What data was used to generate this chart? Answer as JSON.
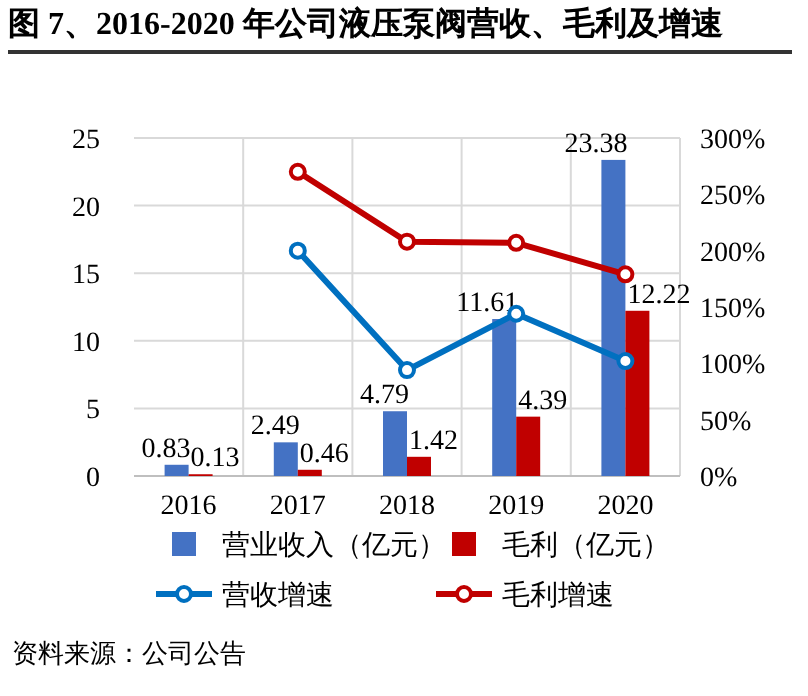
{
  "chart_data": {
    "type": "bar",
    "title": "图 7、2016-2020 年公司液压泵阀营收、毛利及增速",
    "categories": [
      "2016",
      "2017",
      "2018",
      "2019",
      "2020"
    ],
    "series": [
      {
        "name": "营业收入（亿元）",
        "color": "#4472c4",
        "values": [
          0.83,
          2.49,
          4.79,
          11.61,
          23.38
        ],
        "value_labels": [
          "0.83",
          "2.49",
          "4.79",
          "11.61",
          "23.38"
        ]
      },
      {
        "name": "毛利（亿元）",
        "color": "#c00000",
        "values": [
          0.13,
          0.46,
          1.42,
          4.39,
          12.22
        ],
        "value_labels": [
          "0.13",
          "0.46",
          "1.42",
          "4.39",
          "12.22"
        ]
      },
      {
        "name": "营收增速",
        "type": "line",
        "axis": "y2",
        "color": "#0070c0",
        "values": [
          null,
          200,
          94,
          144,
          102
        ]
      },
      {
        "name": "毛利增速",
        "type": "line",
        "axis": "y2",
        "color": "#c00000",
        "values": [
          null,
          270,
          208,
          207,
          179
        ]
      }
    ],
    "ylim": [
      0,
      25
    ],
    "yticks": [
      0,
      5,
      10,
      15,
      20,
      25
    ],
    "y2lim": [
      0,
      300
    ],
    "y2ticks": [
      {
        "value": 0,
        "label": "0%"
      },
      {
        "value": 50,
        "label": "50%"
      },
      {
        "value": 100,
        "label": "100%"
      },
      {
        "value": 150,
        "label": "150%"
      },
      {
        "value": 200,
        "label": "200%"
      },
      {
        "value": 250,
        "label": "250%"
      },
      {
        "value": 300,
        "label": "300%"
      }
    ],
    "grid": true,
    "legend": "bottom",
    "marker": "circle",
    "line_style": "solid",
    "annotations": [
      "资料来源：公司公告"
    ]
  }
}
